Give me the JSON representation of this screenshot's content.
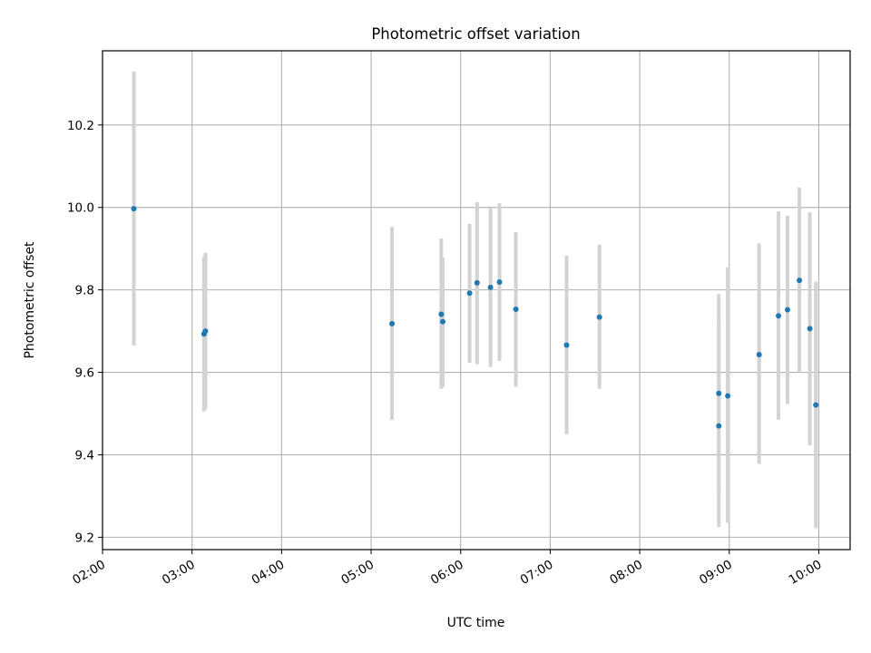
{
  "chart_data": {
    "type": "scatter",
    "title": "Photometric offset variation",
    "xlabel": "UTC time",
    "ylabel": "Photometric offset",
    "x_ticks": [
      "02:00",
      "03:00",
      "04:00",
      "05:00",
      "06:00",
      "07:00",
      "08:00",
      "09:00",
      "10:00"
    ],
    "y_ticks": [
      "9.2",
      "9.4",
      "9.6",
      "9.8",
      "10.0",
      "10.2"
    ],
    "xlim": [
      "02:00",
      "10:21"
    ],
    "ylim": [
      9.17,
      10.38
    ],
    "grid": true,
    "error_bar_color": "#d3d3d3",
    "marker_color": "#1f77b4",
    "points": [
      {
        "t": "02:21",
        "y": 9.997,
        "err_low": 9.665,
        "err_high": 10.33
      },
      {
        "t": "03:08",
        "y": 9.693,
        "err_low": 9.505,
        "err_high": 9.88
      },
      {
        "t": "03:09",
        "y": 9.7,
        "err_low": 9.51,
        "err_high": 9.89
      },
      {
        "t": "05:14",
        "y": 9.718,
        "err_low": 9.485,
        "err_high": 9.953
      },
      {
        "t": "05:47",
        "y": 9.741,
        "err_low": 9.56,
        "err_high": 9.925
      },
      {
        "t": "05:48",
        "y": 9.723,
        "err_low": 9.565,
        "err_high": 9.878
      },
      {
        "t": "06:06",
        "y": 9.792,
        "err_low": 9.623,
        "err_high": 9.96
      },
      {
        "t": "06:11",
        "y": 9.817,
        "err_low": 9.62,
        "err_high": 10.013
      },
      {
        "t": "06:20",
        "y": 9.806,
        "err_low": 9.613,
        "err_high": 9.998
      },
      {
        "t": "06:26",
        "y": 9.819,
        "err_low": 9.628,
        "err_high": 10.01
      },
      {
        "t": "06:37",
        "y": 9.753,
        "err_low": 9.565,
        "err_high": 9.94
      },
      {
        "t": "07:11",
        "y": 9.666,
        "err_low": 9.45,
        "err_high": 9.883
      },
      {
        "t": "07:33",
        "y": 9.734,
        "err_low": 9.56,
        "err_high": 9.91
      },
      {
        "t": "08:53",
        "y": 9.549,
        "err_low": 9.31,
        "err_high": 9.79
      },
      {
        "t": "08:53",
        "y": 9.47,
        "err_low": 9.225,
        "err_high": 9.72
      },
      {
        "t": "08:59",
        "y": 9.543,
        "err_low": 9.235,
        "err_high": 9.855
      },
      {
        "t": "09:20",
        "y": 9.643,
        "err_low": 9.378,
        "err_high": 9.913
      },
      {
        "t": "09:33",
        "y": 9.737,
        "err_low": 9.485,
        "err_high": 9.99
      },
      {
        "t": "09:39",
        "y": 9.752,
        "err_low": 9.523,
        "err_high": 9.98
      },
      {
        "t": "09:47",
        "y": 9.823,
        "err_low": 9.6,
        "err_high": 10.048
      },
      {
        "t": "09:54",
        "y": 9.706,
        "err_low": 9.423,
        "err_high": 9.988
      },
      {
        "t": "09:58",
        "y": 9.521,
        "err_low": 9.222,
        "err_high": 9.82
      }
    ]
  }
}
